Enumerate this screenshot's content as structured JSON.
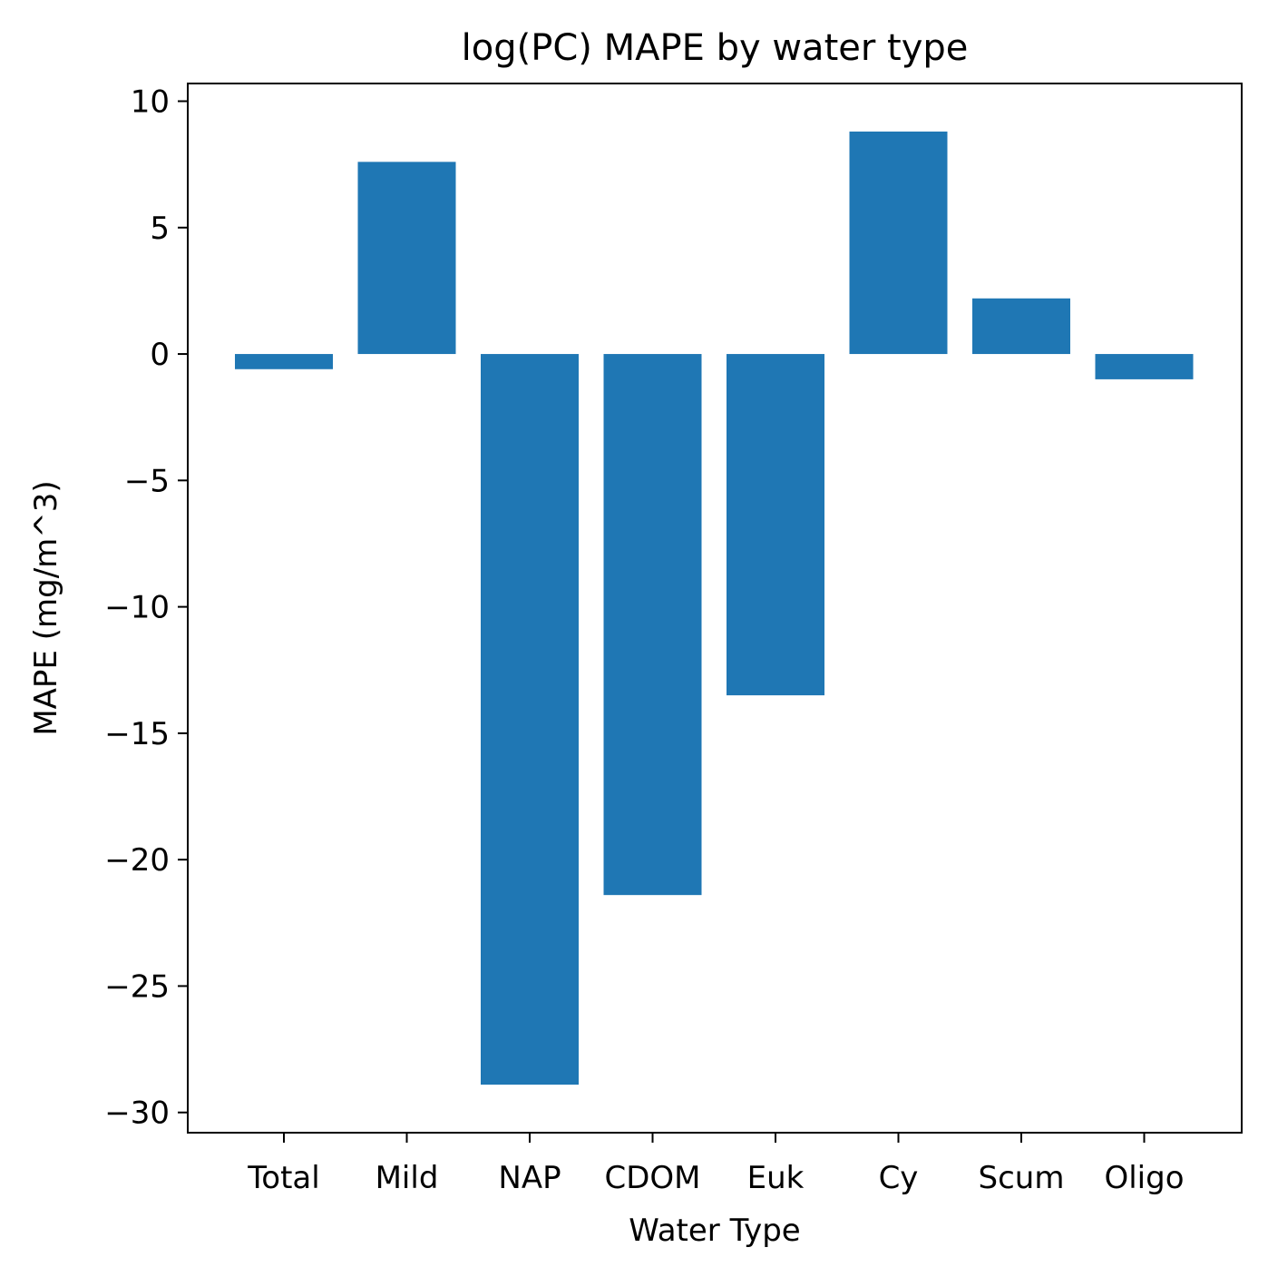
{
  "chart_data": {
    "type": "bar",
    "title": "log(PC) MAPE by water type",
    "xlabel": "Water Type",
    "ylabel": "MAPE (mg/m^3)",
    "categories": [
      "Total",
      "Mild",
      "NAP",
      "CDOM",
      "Euk",
      "Cy",
      "Scum",
      "Oligo"
    ],
    "values": [
      -0.6,
      7.6,
      -28.9,
      -21.4,
      -13.5,
      8.8,
      2.2,
      -1.0
    ],
    "ylim": [
      -30.8,
      10.7
    ],
    "yticks": [
      10,
      5,
      0,
      -5,
      -10,
      -15,
      -20,
      -25,
      -30
    ],
    "ytick_labels": [
      "10",
      "5",
      "0",
      "−5",
      "−10",
      "−15",
      "−20",
      "−25",
      "−30"
    ],
    "grid": false,
    "bar_color": "#1f77b4"
  }
}
